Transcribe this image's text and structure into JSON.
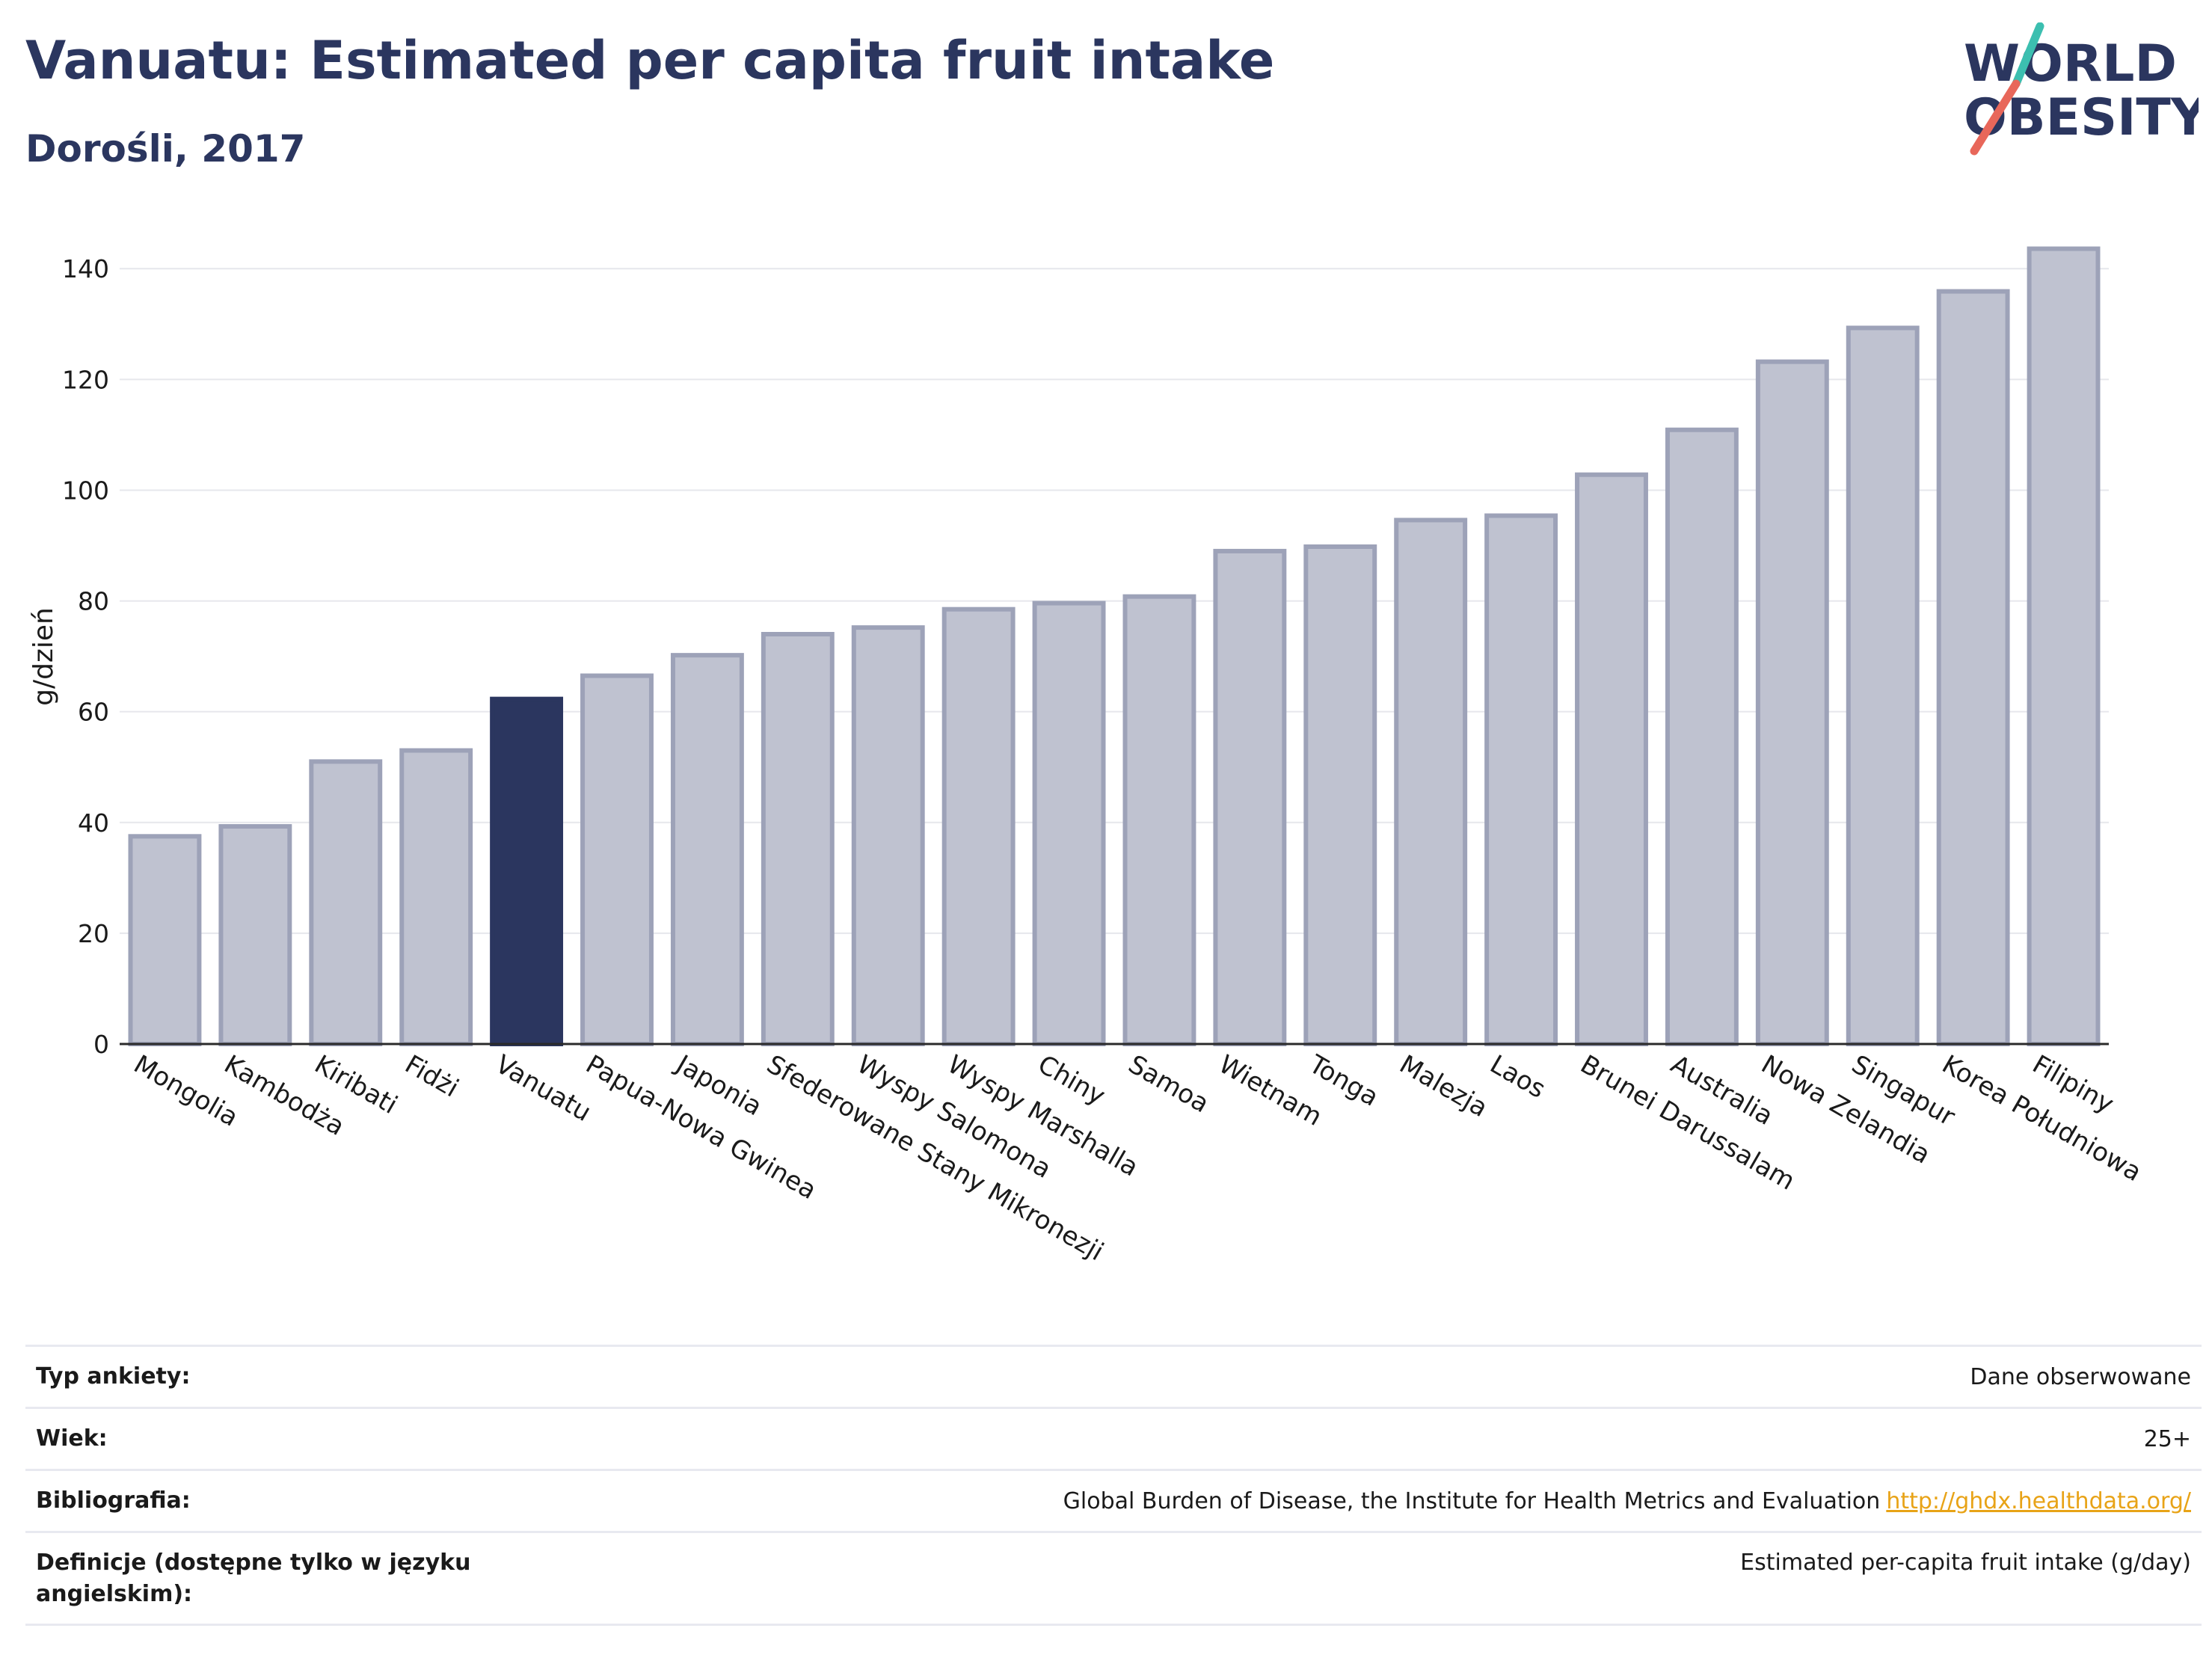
{
  "header": {
    "title": "Vanuatu: Estimated per capita fruit intake",
    "subtitle": "Dorośli, 2017"
  },
  "logo": {
    "line1": "WORLD",
    "line2": "OBESITY",
    "colors": {
      "text": "#2b365f",
      "slash_top": "#3cbfb0",
      "slash_bottom": "#e8675a"
    }
  },
  "chart_data": {
    "type": "bar",
    "ylabel": "g/dzień",
    "ylim": [
      0,
      148
    ],
    "yticks": [
      0,
      20,
      40,
      60,
      80,
      100,
      120,
      140
    ],
    "grid": true,
    "highlight": "Vanuatu",
    "colors": {
      "bar": "#bfc2d0",
      "bar_border": "#9da2b8",
      "highlight": "#2b365f"
    },
    "categories": [
      "Mongolia",
      "Kambodża",
      "Kiribati",
      "Fidżi",
      "Vanuatu",
      "Papua-Nowa Gwinea",
      "Japonia",
      "Sfederowane Stany Mikronezji",
      "Wyspy Salomona",
      "Wyspy Marshalla",
      "Chiny",
      "Samoa",
      "Wietnam",
      "Tonga",
      "Malezja",
      "Laos",
      "Brunei Darussalam",
      "Australia",
      "Nowa Zelandia",
      "Singapur",
      "Korea Południowa",
      "Filipiny"
    ],
    "values": [
      37.5,
      39.3,
      51,
      53,
      62.3,
      66.5,
      70.2,
      74,
      75.2,
      78.5,
      79.6,
      80.8,
      89,
      89.8,
      94.6,
      95.4,
      102.8,
      110.9,
      123.2,
      129.3,
      135.9,
      143.6
    ]
  },
  "meta": {
    "rows": [
      {
        "key": "Typ ankiety:",
        "value": "Dane obserwowane"
      },
      {
        "key": "Wiek:",
        "value": "25+"
      },
      {
        "key": "Bibliografia:",
        "value": "Global Burden of Disease, the Institute for Health Metrics and Evaluation",
        "link": "http://ghdx.healthdata.org/"
      },
      {
        "key": "Definicje (dostępne tylko w języku angielskim):",
        "value": "Estimated per-capita fruit intake (g/day)"
      }
    ]
  }
}
